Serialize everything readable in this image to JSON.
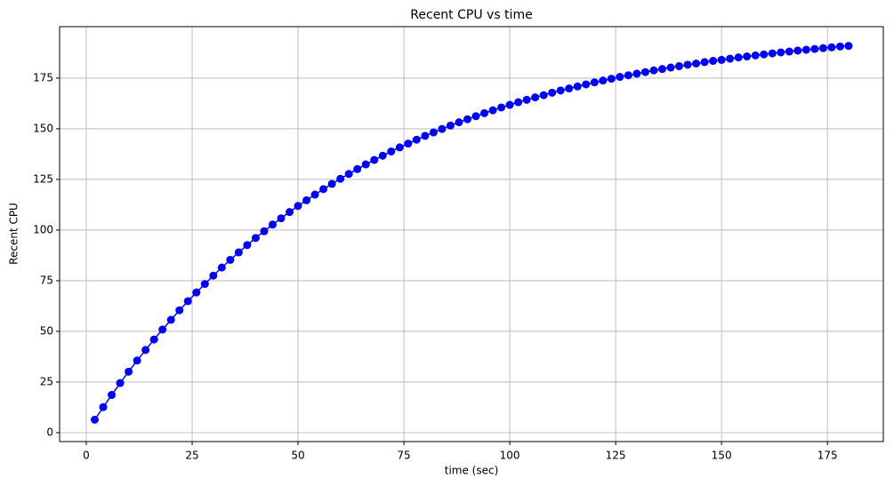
{
  "chart_data": {
    "type": "line",
    "title": "Recent CPU vs time",
    "x_label": "time (sec)",
    "y_label": "Recent CPU",
    "x": [
      2,
      4,
      6,
      8,
      10,
      12,
      14,
      16,
      18,
      20,
      22,
      24,
      26,
      28,
      30,
      32,
      34,
      36,
      38,
      40,
      42,
      44,
      46,
      48,
      50,
      52,
      54,
      56,
      58,
      60,
      62,
      64,
      66,
      68,
      70,
      72,
      74,
      76,
      78,
      80,
      82,
      84,
      86,
      88,
      90,
      92,
      94,
      96,
      98,
      100,
      102,
      104,
      106,
      108,
      110,
      112,
      114,
      116,
      118,
      120,
      122,
      124,
      126,
      128,
      130,
      132,
      134,
      136,
      138,
      140,
      142,
      144,
      146,
      148,
      150,
      152,
      154,
      156,
      158,
      160,
      162,
      164,
      166,
      168,
      170,
      172,
      174,
      176,
      178,
      180
    ],
    "series": [
      {
        "name": "Recent CPU",
        "color": "#0000ff",
        "values": [
          6.4,
          12.6,
          18.6,
          24.5,
          30.1,
          35.6,
          40.8,
          46.0,
          50.9,
          55.7,
          60.4,
          64.9,
          69.2,
          73.4,
          77.5,
          81.5,
          85.3,
          89.0,
          92.6,
          96.1,
          99.4,
          102.7,
          105.8,
          108.9,
          111.9,
          114.7,
          117.5,
          120.2,
          122.8,
          125.3,
          127.7,
          130.1,
          132.4,
          134.6,
          136.7,
          138.8,
          140.8,
          142.7,
          144.6,
          146.5,
          148.2,
          149.9,
          151.6,
          153.2,
          154.7,
          156.2,
          157.7,
          159.1,
          160.5,
          161.8,
          163.1,
          164.3,
          165.5,
          166.6,
          167.8,
          168.9,
          169.9,
          170.9,
          171.9,
          172.9,
          173.8,
          174.7,
          175.6,
          176.4,
          177.2,
          178.0,
          178.8,
          179.5,
          180.2,
          180.9,
          181.6,
          182.2,
          182.9,
          183.5,
          184.0,
          184.6,
          185.2,
          185.7,
          186.2,
          186.7,
          187.2,
          187.7,
          188.1,
          188.6,
          189.0,
          189.4,
          189.8,
          190.2,
          190.6,
          190.9
        ]
      }
    ],
    "xlim": [
      -6.3,
      188.2
    ],
    "ylim": [
      -4.4,
      200.4
    ],
    "xticks": [
      0,
      25,
      50,
      75,
      100,
      125,
      150,
      175
    ],
    "yticks": [
      0,
      25,
      50,
      75,
      100,
      125,
      150,
      175
    ],
    "grid": true
  }
}
